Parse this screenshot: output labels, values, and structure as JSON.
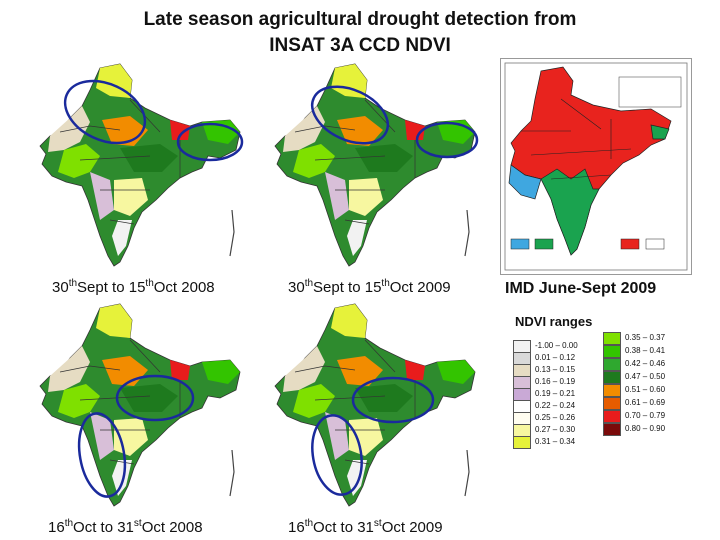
{
  "slide": {
    "title_line1": "Late season agricultural drought detection from",
    "title_line2": "INSAT 3A CCD NDVI"
  },
  "maps": [
    {
      "caption_d1": "30",
      "caption_s1": "th",
      "caption_m1": "Sept to 15",
      "caption_s2": "th",
      "caption_m2": "Oct 2008"
    },
    {
      "caption_d1": "30",
      "caption_s1": "th",
      "caption_m1": "Sept to 15",
      "caption_s2": "th",
      "caption_m2": "Oct 2009"
    },
    {
      "caption_d1": "16",
      "caption_s1": "th",
      "caption_m1": "Oct to 31",
      "caption_s2": "st",
      "caption_m2": "Oct 2008"
    },
    {
      "caption_d1": "16",
      "caption_s1": "th",
      "caption_m1": "Oct to 31",
      "caption_s2": "st",
      "caption_m2": "Oct 2009"
    }
  ],
  "imd_map": {
    "caption": "IMD  June-Sept 2009",
    "colors": {
      "deficient": "#e8231e",
      "normal": "#1aa34f",
      "excess": "#3fa7e0"
    }
  },
  "legend": {
    "title": "NDVI ranges",
    "left_ranges": [
      {
        "range": "-1.00  –  0.00",
        "color": "#f2f2f2"
      },
      {
        "range": "0.01  –  0.12",
        "color": "#d9d9d9"
      },
      {
        "range": "0.13  –  0.15",
        "color": "#e6dcc3"
      },
      {
        "range": "0.16  –  0.19",
        "color": "#d8bfd8"
      },
      {
        "range": "0.19  –  0.21",
        "color": "#c9a9d6"
      },
      {
        "range": "0.22  –  0.24",
        "color": "#ffffff"
      },
      {
        "range": "0.25  –  0.26",
        "color": "#fffdf0"
      },
      {
        "range": "0.27  –  0.30",
        "color": "#f7f7a0"
      },
      {
        "range": "0.31  –  0.34",
        "color": "#e6f23a"
      }
    ],
    "right_ranges": [
      {
        "range": "0.35  –  0.37",
        "color": "#7fe000"
      },
      {
        "range": "0.38  –  0.41",
        "color": "#33c400"
      },
      {
        "range": "0.42  –  0.46",
        "color": "#2fa82f"
      },
      {
        "range": "0.47  –  0.50",
        "color": "#1e7a1e"
      },
      {
        "range": "0.51  –  0.60",
        "color": "#f28c00"
      },
      {
        "range": "0.61  –  0.69",
        "color": "#e65c00"
      },
      {
        "range": "0.70  –  0.79",
        "color": "#e81c1c"
      },
      {
        "range": "0.80  –  0.90",
        "color": "#7a0a0a"
      }
    ]
  }
}
